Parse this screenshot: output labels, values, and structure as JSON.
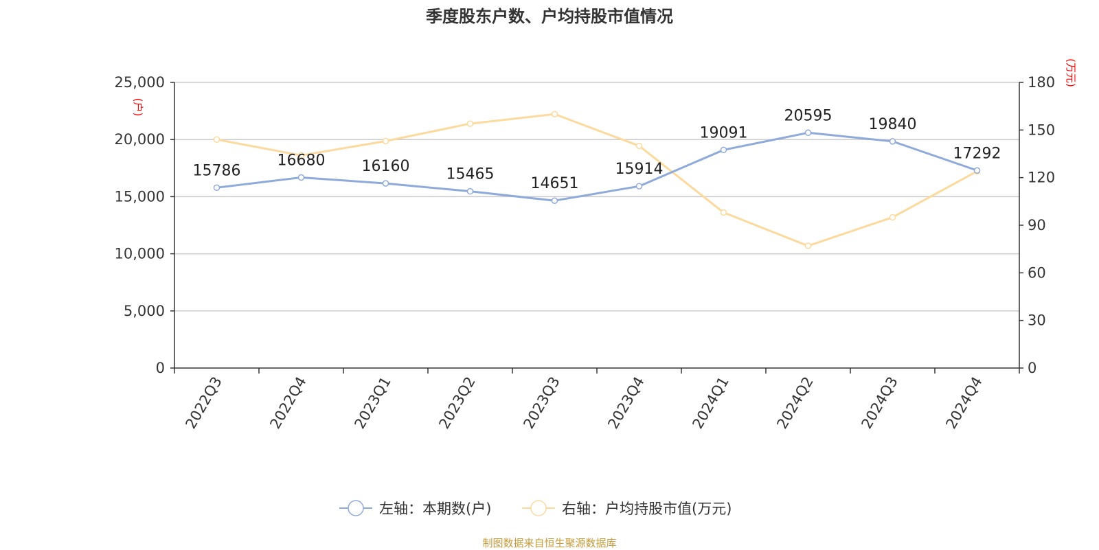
{
  "chart_data": {
    "type": "line",
    "title": "季度股东户数、户均持股市值情况",
    "categories": [
      "2022Q3",
      "2022Q4",
      "2023Q1",
      "2023Q2",
      "2023Q3",
      "2023Q4",
      "2024Q1",
      "2024Q2",
      "2024Q3",
      "2024Q4"
    ],
    "left_axis": {
      "unit": "(户)",
      "ylim": [
        0,
        25000
      ],
      "ticks": [
        0,
        5000,
        10000,
        15000,
        20000,
        25000
      ],
      "tick_labels": [
        "0",
        "5,000",
        "10,000",
        "15,000",
        "20,000",
        "25,000"
      ]
    },
    "right_axis": {
      "unit": "(万元)",
      "ylim": [
        0,
        180
      ],
      "ticks": [
        0,
        30,
        60,
        90,
        120,
        150,
        180
      ],
      "tick_labels": [
        "0",
        "30",
        "60",
        "90",
        "120",
        "150",
        "180"
      ]
    },
    "series": [
      {
        "name": "左轴：本期数(户)",
        "axis": "left",
        "color": "#8eaadb",
        "values": [
          15786,
          16680,
          16160,
          15465,
          14651,
          15914,
          19091,
          20595,
          19840,
          17292
        ],
        "data_labels": [
          "15786",
          "16680",
          "16160",
          "15465",
          "14651",
          "15914",
          "19091",
          "20595",
          "19840",
          "17292"
        ]
      },
      {
        "name": "右轴：户均持股市值(万元)",
        "axis": "right",
        "color": "#fcd99c",
        "values": [
          144,
          134,
          143,
          154,
          160,
          140,
          98,
          77,
          95,
          124
        ]
      }
    ],
    "grid": true,
    "legend_position": "bottom-center"
  },
  "footer": {
    "source": "制图数据来自恒生聚源数据库"
  }
}
